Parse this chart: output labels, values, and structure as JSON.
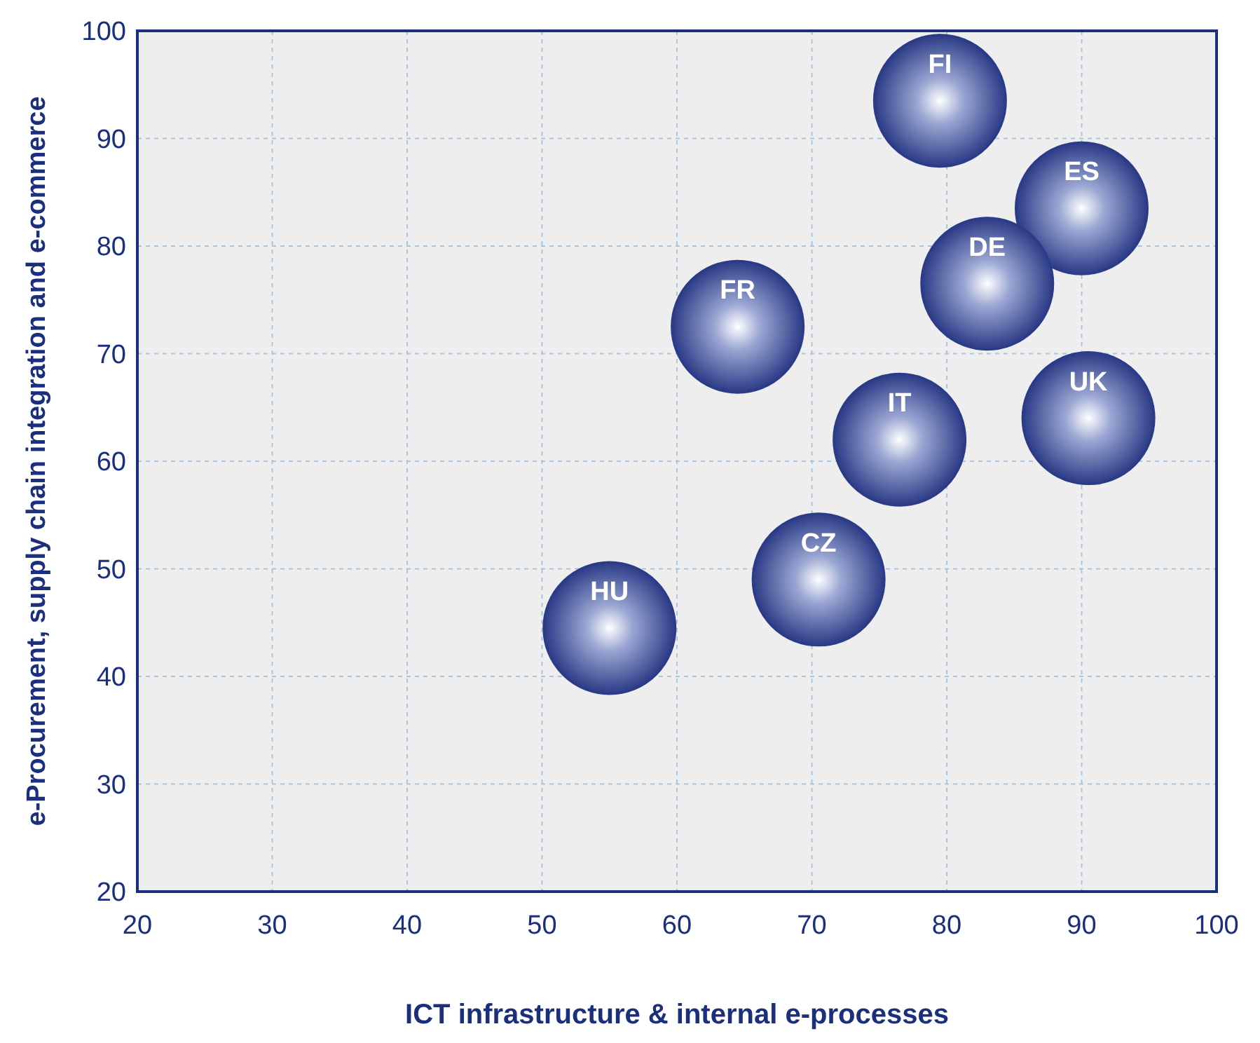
{
  "chart_data": {
    "type": "scatter",
    "xlabel": "ICT infrastructure & internal e-processes",
    "ylabel": "e-Procurement, supply chain integration and e-commerce",
    "xlim": [
      20,
      100
    ],
    "ylim": [
      20,
      100
    ],
    "xticks": [
      20,
      30,
      40,
      50,
      60,
      70,
      80,
      90,
      100
    ],
    "yticks": [
      20,
      30,
      40,
      50,
      60,
      70,
      80,
      90,
      100
    ],
    "grid": true,
    "marker": "circle",
    "series": [
      {
        "name": "FI",
        "color": "#2b3b86",
        "x": [
          79.5
        ],
        "values": [
          93.5
        ]
      },
      {
        "name": "ES",
        "color": "#2b3b86",
        "x": [
          90
        ],
        "values": [
          83.5
        ]
      },
      {
        "name": "DE",
        "color": "#2b3b86",
        "x": [
          83
        ],
        "values": [
          76.5
        ]
      },
      {
        "name": "FR",
        "color": "#2b3b86",
        "x": [
          64.5
        ],
        "values": [
          72.5
        ]
      },
      {
        "name": "UK",
        "color": "#2b3b86",
        "x": [
          90.5
        ],
        "values": [
          64
        ]
      },
      {
        "name": "IT",
        "color": "#2b3b86",
        "x": [
          76.5
        ],
        "values": [
          62
        ]
      },
      {
        "name": "CZ",
        "color": "#2b3b86",
        "x": [
          70.5
        ],
        "values": [
          49
        ]
      },
      {
        "name": "HU",
        "color": "#2b3b86",
        "x": [
          55
        ],
        "values": [
          44.5
        ]
      }
    ]
  }
}
